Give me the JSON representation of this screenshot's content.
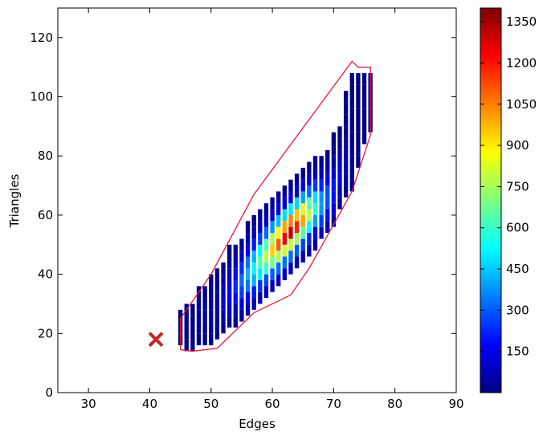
{
  "chart_data": {
    "type": "hist2d",
    "xlabel": "Edges",
    "ylabel": "Triangles",
    "xlim": [
      25,
      90
    ],
    "xticks": [
      30,
      40,
      50,
      60,
      70,
      80,
      90
    ],
    "ylim": [
      0,
      130
    ],
    "yticks": [
      0,
      20,
      40,
      60,
      80,
      100,
      120
    ],
    "ybin": 4,
    "clim": [
      0,
      1400
    ],
    "cticks": [
      150,
      300,
      450,
      600,
      750,
      900,
      1050,
      1200,
      1350
    ],
    "colormap": "jet",
    "columns": [
      {
        "x": 45,
        "y0": 16,
        "counts": [
          5,
          8,
          6
        ]
      },
      {
        "x": 46,
        "y0": 14,
        "counts": [
          6,
          10,
          12,
          8
        ]
      },
      {
        "x": 47,
        "y0": 14,
        "counts": [
          8,
          14,
          18,
          12
        ]
      },
      {
        "x": 48,
        "y0": 16,
        "counts": [
          10,
          20,
          26,
          18,
          8
        ]
      },
      {
        "x": 49,
        "y0": 16,
        "counts": [
          14,
          28,
          36,
          30,
          14
        ]
      },
      {
        "x": 50,
        "y0": 16,
        "counts": [
          18,
          40,
          55,
          45,
          25,
          10
        ]
      },
      {
        "x": 51,
        "y0": 18,
        "counts": [
          25,
          55,
          80,
          70,
          40,
          15
        ]
      },
      {
        "x": 52,
        "y0": 20,
        "counts": [
          30,
          70,
          110,
          100,
          60,
          25
        ]
      },
      {
        "x": 53,
        "y0": 22,
        "counts": [
          40,
          95,
          150,
          140,
          85,
          35,
          12
        ]
      },
      {
        "x": 54,
        "y0": 22,
        "counts": [
          35,
          100,
          190,
          230,
          180,
          95,
          35
        ]
      },
      {
        "x": 55,
        "y0": 24,
        "counts": [
          45,
          130,
          260,
          320,
          240,
          120,
          40
        ]
      },
      {
        "x": 56,
        "y0": 26,
        "counts": [
          55,
          170,
          340,
          420,
          330,
          160,
          55,
          12
        ]
      },
      {
        "x": 57,
        "y0": 28,
        "counts": [
          60,
          200,
          420,
          520,
          420,
          210,
          70,
          15
        ]
      },
      {
        "x": 58,
        "y0": 30,
        "counts": [
          70,
          240,
          500,
          640,
          520,
          260,
          80,
          20
        ]
      },
      {
        "x": 59,
        "y0": 32,
        "counts": [
          80,
          270,
          600,
          780,
          630,
          310,
          95,
          20
        ]
      },
      {
        "x": 60,
        "y0": 34,
        "counts": [
          85,
          300,
          680,
          940,
          760,
          380,
          110,
          25
        ]
      },
      {
        "x": 61,
        "y0": 36,
        "counts": [
          90,
          320,
          760,
          1100,
          880,
          430,
          120,
          25
        ]
      },
      {
        "x": 62,
        "y0": 38,
        "counts": [
          95,
          330,
          800,
          1250,
          1000,
          480,
          130,
          28
        ]
      },
      {
        "x": 63,
        "y0": 40,
        "counts": [
          90,
          320,
          790,
          1300,
          1050,
          500,
          140,
          30
        ]
      },
      {
        "x": 64,
        "y0": 42,
        "counts": [
          80,
          300,
          740,
          1180,
          960,
          470,
          130,
          30
        ]
      },
      {
        "x": 65,
        "y0": 44,
        "counts": [
          70,
          260,
          640,
          1000,
          820,
          400,
          120,
          28
        ]
      },
      {
        "x": 66,
        "y0": 46,
        "counts": [
          60,
          220,
          520,
          780,
          640,
          320,
          100,
          25
        ]
      },
      {
        "x": 67,
        "y0": 48,
        "counts": [
          50,
          170,
          400,
          590,
          480,
          250,
          80,
          20
        ]
      },
      {
        "x": 68,
        "y0": 52,
        "counts": [
          90,
          260,
          390,
          380,
          220,
          80,
          20
        ]
      },
      {
        "x": 69,
        "y0": 54,
        "counts": [
          70,
          190,
          290,
          280,
          170,
          60,
          15
        ]
      },
      {
        "x": 70,
        "y0": 56,
        "counts": [
          50,
          130,
          200,
          200,
          120,
          45,
          12,
          5
        ]
      },
      {
        "x": 71,
        "y0": 62,
        "counts": [
          35,
          90,
          130,
          130,
          80,
          30,
          10
        ]
      },
      {
        "x": 72,
        "y0": 66,
        "counts": [
          15,
          40,
          60,
          65,
          50,
          25,
          10,
          4,
          2
        ]
      },
      {
        "x": 73,
        "y0": 68,
        "counts": [
          8,
          25,
          40,
          45,
          38,
          22,
          10,
          4,
          2,
          1
        ]
      },
      {
        "x": 74,
        "y0": 76,
        "counts": [
          5,
          12,
          18,
          20,
          15,
          8,
          4,
          2
        ]
      },
      {
        "x": 75,
        "y0": 84,
        "counts": [
          3,
          6,
          8,
          8,
          6,
          3
        ]
      },
      {
        "x": 76,
        "y0": 88,
        "counts": [
          2,
          4,
          5,
          4,
          3
        ]
      }
    ],
    "hull": {
      "color": "#e8193c",
      "x": [
        45,
        45,
        47,
        50,
        57,
        73,
        74,
        76,
        76,
        73,
        66,
        63,
        57,
        51,
        47,
        45
      ],
      "y": [
        14.5,
        25,
        31,
        40,
        67,
        112,
        110,
        110,
        87,
        68,
        42,
        33,
        27,
        15,
        14,
        14.5
      ]
    },
    "marker": {
      "color": "#c0282a",
      "x": [
        41
      ],
      "y": [
        18
      ]
    }
  }
}
